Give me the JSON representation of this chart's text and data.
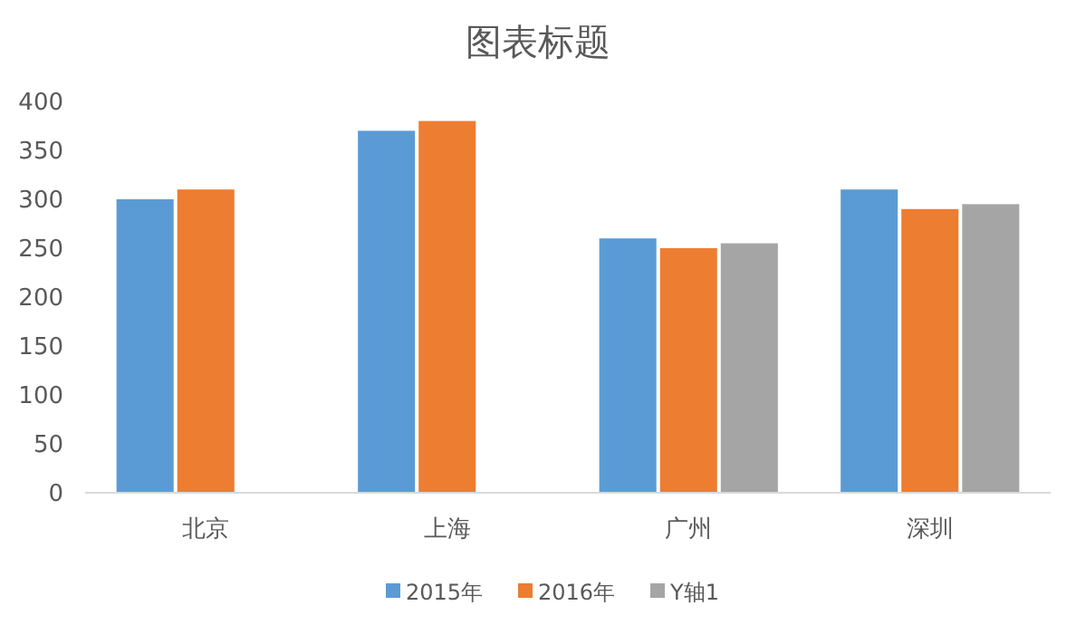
{
  "chart_data": {
    "type": "bar",
    "title": "图表标题",
    "categories": [
      "北京",
      "上海",
      "广州",
      "深圳"
    ],
    "series": [
      {
        "name": "2015年",
        "color": "#5b9bd5",
        "values": [
          300,
          370,
          260,
          310
        ]
      },
      {
        "name": "2016年",
        "color": "#ed7d31",
        "values": [
          310,
          380,
          250,
          290
        ]
      },
      {
        "name": "Y轴1",
        "color": "#a5a5a5",
        "values": [
          null,
          null,
          255,
          295
        ]
      }
    ],
    "ylim": [
      0,
      400
    ],
    "yticks": [
      0,
      50,
      100,
      150,
      200,
      250,
      300,
      350,
      400
    ],
    "grid": false,
    "legend": "bottom"
  }
}
